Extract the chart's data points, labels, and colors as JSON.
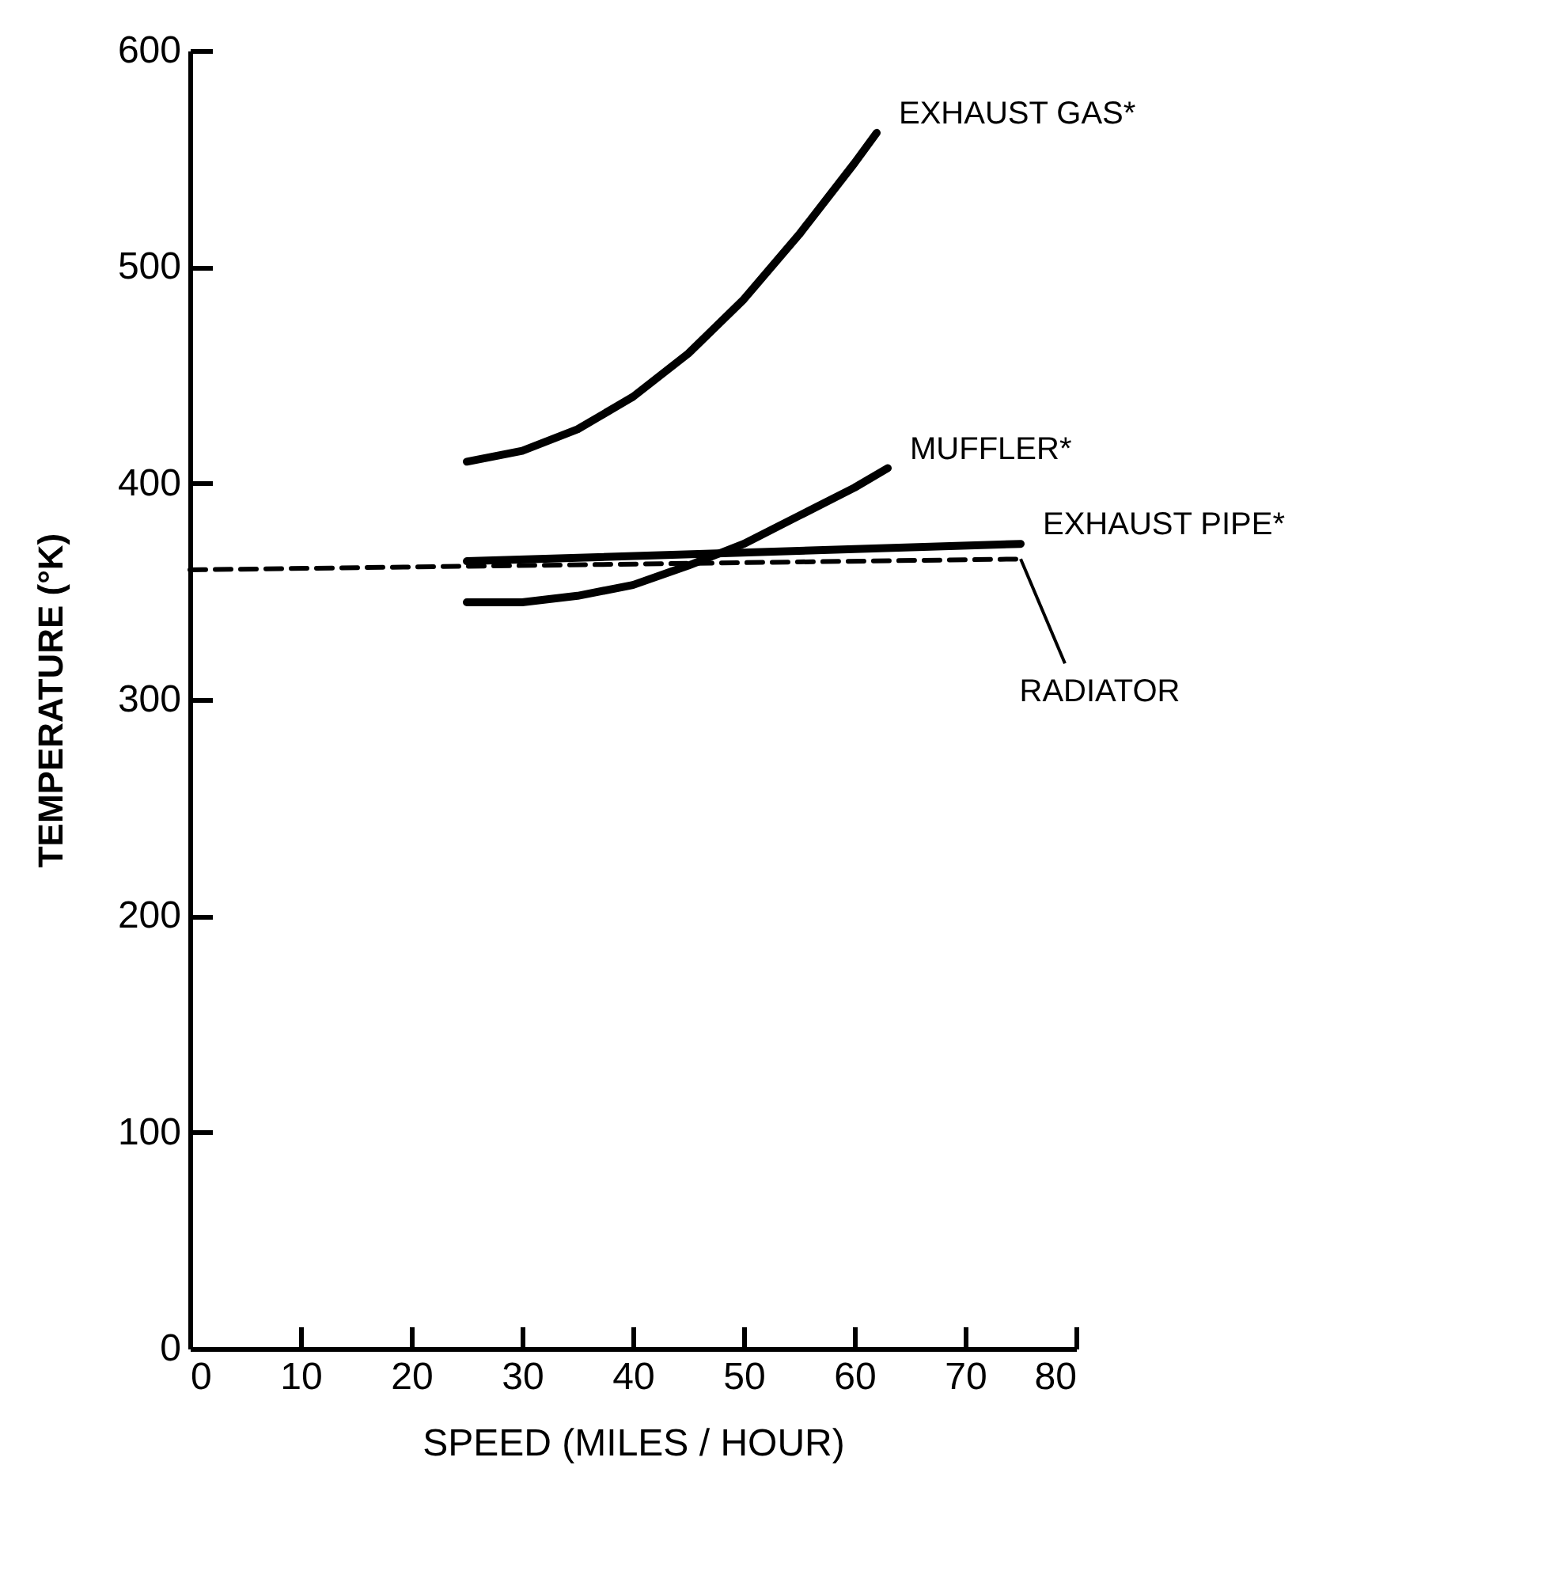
{
  "chart_data": {
    "type": "line",
    "xlabel": "SPEED (MILES / HOUR)",
    "ylabel": "TEMPERATURE (°K)",
    "xlim": [
      0,
      80
    ],
    "xticks": [
      0,
      10,
      20,
      30,
      40,
      50,
      60,
      70,
      80
    ],
    "ylim": [
      0,
      600
    ],
    "yticks": [
      0,
      100,
      200,
      300,
      400,
      500,
      600
    ],
    "grid": false,
    "legend": false,
    "marker": "none",
    "series": [
      {
        "name": "EXHAUST GAS*",
        "color": "#000000",
        "x": [
          25,
          30,
          35,
          40,
          45,
          50,
          55,
          60,
          62
        ],
        "values": [
          410,
          415,
          425,
          440,
          460,
          485,
          515,
          548,
          562
        ]
      },
      {
        "name": "MUFFLER*",
        "color": "#000000",
        "x": [
          25,
          30,
          35,
          40,
          45,
          50,
          55,
          60,
          63
        ],
        "values": [
          345,
          345,
          348,
          353,
          362,
          372,
          385,
          398,
          407
        ]
      },
      {
        "name": "EXHAUST PIPE*",
        "color": "#000000",
        "x": [
          25,
          75
        ],
        "values": [
          364,
          372
        ]
      },
      {
        "name": "RADIATOR",
        "color": "#000000",
        "line_style": "dashed",
        "x": [
          0,
          75
        ],
        "values": [
          360,
          365
        ]
      }
    ]
  }
}
